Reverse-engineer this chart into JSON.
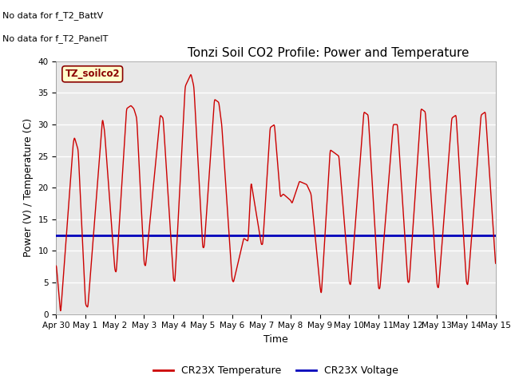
{
  "title": "Tonzi Soil CO2 Profile: Power and Temperature",
  "xlabel": "Time",
  "ylabel": "Power (V) / Temperature (C)",
  "ylim": [
    0,
    40
  ],
  "yticks": [
    0,
    5,
    10,
    15,
    20,
    25,
    30,
    35,
    40
  ],
  "xtick_labels": [
    "Apr 30",
    "May 1",
    "May 2",
    "May 3",
    "May 4",
    "May 5",
    "May 6",
    "May 7",
    "May 8",
    "May 9",
    "May 10",
    "May 11",
    "May 12",
    "May 13",
    "May 14",
    "May 15"
  ],
  "voltage_value": 12.5,
  "voltage_color": "#0000bb",
  "temp_color": "#cc0000",
  "bg_color": "#e8e8e8",
  "legend_label_temp": "CR23X Temperature",
  "legend_label_voltage": "CR23X Voltage",
  "annotation_text1": "No data for f_T2_BattV",
  "annotation_text2": "No data for f_T2_PanelT",
  "box_label": "TZ_soilco2",
  "title_fontsize": 11,
  "axis_fontsize": 9,
  "tick_fontsize": 7.5,
  "annot_fontsize": 8
}
